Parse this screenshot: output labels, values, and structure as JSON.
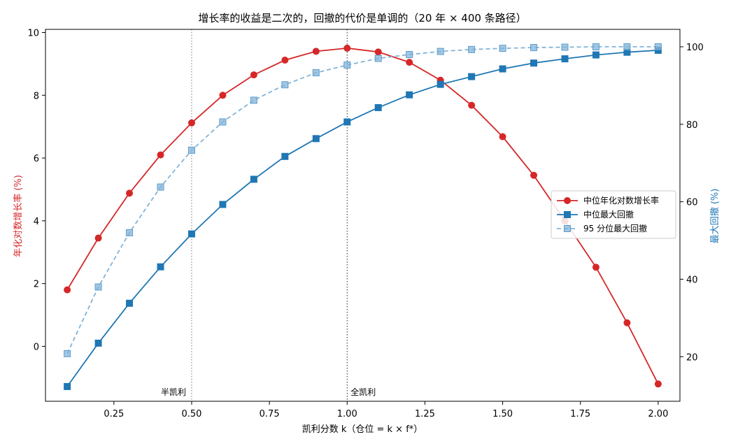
{
  "chart_data": {
    "type": "line",
    "title": "增长率的收益是二次的，回撤的代价是单调的（20 年 × 400 条路径）",
    "xlabel": "凯利分数 k（仓位 = k × f*）",
    "ylabel_left": "年化对数增长率 (%)",
    "ylabel_right": "最大回撤 (%)",
    "xlim": [
      0.03,
      2.07
    ],
    "ylim_left": [
      -1.75,
      10.1
    ],
    "ylim_right": [
      8.5,
      104.5
    ],
    "xticks": [
      0.25,
      0.5,
      0.75,
      1.0,
      1.25,
      1.5,
      1.75,
      2.0
    ],
    "xtick_labels": [
      "0.25",
      "0.50",
      "0.75",
      "1.00",
      "1.25",
      "1.50",
      "1.75",
      "2.00"
    ],
    "yticks_left": [
      0,
      2,
      4,
      6,
      8,
      10
    ],
    "yticks_right": [
      20,
      40,
      60,
      80,
      100
    ],
    "x": [
      0.1,
      0.2,
      0.3,
      0.4,
      0.5,
      0.6,
      0.7,
      0.8,
      0.9,
      1.0,
      1.1,
      1.2,
      1.3,
      1.4,
      1.5,
      1.6,
      1.7,
      1.8,
      1.9,
      2.0
    ],
    "series": [
      {
        "name": "中位年化对数增长率",
        "axis": "left",
        "color": "#d62728",
        "marker": "circle",
        "dashed": false,
        "values": [
          1.8,
          3.45,
          4.88,
          6.1,
          7.12,
          8.0,
          8.65,
          9.12,
          9.4,
          9.5,
          9.38,
          9.05,
          8.48,
          7.68,
          6.68,
          5.45,
          4.0,
          2.52,
          0.75,
          -1.2
        ]
      },
      {
        "name": "中位最大回撤",
        "axis": "right",
        "color": "#1f77b4",
        "marker": "square",
        "dashed": false,
        "values": [
          12.3,
          23.5,
          33.8,
          43.2,
          51.7,
          59.3,
          65.8,
          71.7,
          76.3,
          80.6,
          84.3,
          87.6,
          90.3,
          92.3,
          94.3,
          95.8,
          96.9,
          97.9,
          98.6,
          99.1
        ]
      },
      {
        "name": "95 分位最大回撤",
        "axis": "right",
        "color": "#82b4d9",
        "marker": "square",
        "dashed": true,
        "values": [
          20.8,
          38.0,
          52.0,
          63.8,
          73.3,
          80.6,
          86.2,
          90.2,
          93.3,
          95.3,
          97.0,
          98.0,
          98.8,
          99.3,
          99.6,
          99.8,
          99.9,
          100.0,
          100.0,
          100.0
        ]
      }
    ],
    "vlines": [
      {
        "x": 0.5,
        "label": "半凯利"
      },
      {
        "x": 1.0,
        "label": "全凯利"
      }
    ],
    "legend_position": "center-right",
    "grid": false
  }
}
